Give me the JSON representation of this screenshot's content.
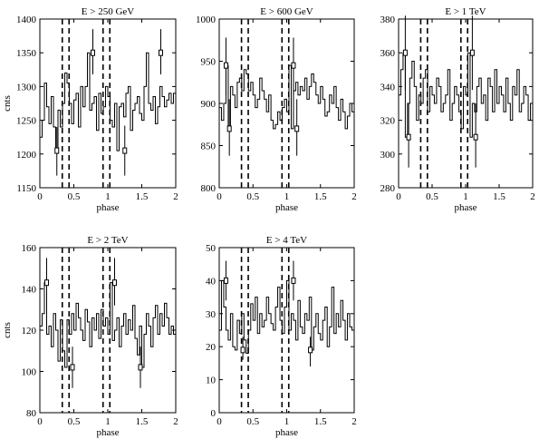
{
  "chart_data": [
    {
      "type": "line",
      "title": "E > 250 GeV",
      "xlabel": "phase",
      "ylabel": "cnts",
      "xlim": [
        0,
        2
      ],
      "ylim": [
        1150,
        1400
      ],
      "xticks": [
        "0",
        "0.5",
        "1",
        "1.5",
        "2"
      ],
      "yticks": [
        "1150",
        "1200",
        "1250",
        "1300",
        "1350",
        "1400"
      ],
      "vlines": [
        0.33,
        0.43,
        0.93,
        1.03
      ],
      "series": [
        {
          "style": "step",
          "values": [
            1225,
            1250,
            1305,
            1270,
            1245,
            1285,
            1240,
            1205,
            1265,
            1240,
            1275,
            1320,
            1305,
            1275,
            1245,
            1280,
            1290,
            1240,
            1300,
            1270,
            1300,
            1350,
            1265,
            1275,
            1285,
            1235,
            1290,
            1260,
            1270,
            1300,
            1285,
            1250,
            1240,
            1275,
            1205,
            1270,
            1275,
            1255,
            1290,
            1300,
            1235,
            1265,
            1275,
            1285,
            1260,
            1250,
            1300,
            1350,
            1275,
            1265,
            1285,
            1245,
            1270,
            1300,
            1285,
            1270,
            1280,
            1290,
            1275,
            1290
          ]
        }
      ],
      "errorbars": [
        {
          "x": 0.25,
          "y": 1205,
          "lo": 1168,
          "hi": 1240
        },
        {
          "x": 0.78,
          "y": 1350,
          "lo": 1318,
          "hi": 1385
        },
        {
          "x": 1.25,
          "y": 1205,
          "lo": 1168,
          "hi": 1242
        },
        {
          "x": 1.78,
          "y": 1350,
          "lo": 1318,
          "hi": 1385
        }
      ]
    },
    {
      "type": "line",
      "title": "E > 600 GeV",
      "xlabel": "phase",
      "ylabel": "",
      "xlim": [
        0,
        2
      ],
      "ylim": [
        800,
        1000
      ],
      "xticks": [
        "0",
        "0.5",
        "1",
        "1.5",
        "2"
      ],
      "yticks": [
        "800",
        "850",
        "900",
        "950",
        "1000"
      ],
      "vlines": [
        0.33,
        0.43,
        0.93,
        1.03
      ],
      "series": [
        {
          "style": "step",
          "values": [
            895,
            880,
            900,
            945,
            870,
            920,
            910,
            895,
            925,
            930,
            915,
            940,
            935,
            915,
            925,
            910,
            895,
            905,
            930,
            915,
            905,
            890,
            910,
            880,
            870,
            875,
            890,
            880,
            895,
            905,
            890,
            945,
            870,
            915,
            925,
            910,
            920,
            915,
            930,
            905,
            920,
            935,
            925,
            910,
            900,
            920,
            905,
            885,
            890,
            910,
            900,
            920,
            895,
            880,
            905,
            890,
            870,
            885,
            900,
            890
          ]
        }
      ],
      "errorbars": [
        {
          "x": 0.1,
          "y": 945,
          "lo": 910,
          "hi": 978
        },
        {
          "x": 0.15,
          "y": 870,
          "lo": 838,
          "hi": 905
        },
        {
          "x": 1.1,
          "y": 945,
          "lo": 910,
          "hi": 978
        },
        {
          "x": 1.15,
          "y": 870,
          "lo": 838,
          "hi": 905
        }
      ]
    },
    {
      "type": "line",
      "title": "E > 1 TeV",
      "xlabel": "phase",
      "ylabel": "",
      "xlim": [
        0,
        2
      ],
      "ylim": [
        280,
        380
      ],
      "xticks": [
        "0",
        "0.5",
        "1",
        "1.5",
        "2"
      ],
      "yticks": [
        "280",
        "300",
        "320",
        "340",
        "360",
        "380"
      ],
      "vlines": [
        0.33,
        0.43,
        0.93,
        1.03
      ],
      "series": [
        {
          "style": "step",
          "values": [
            335,
            350,
            360,
            310,
            330,
            345,
            355,
            340,
            320,
            335,
            330,
            345,
            350,
            325,
            340,
            335,
            330,
            345,
            340,
            325,
            330,
            335,
            350,
            320,
            330,
            340,
            335,
            325,
            315,
            340,
            335,
            360,
            310,
            330,
            325,
            340,
            345,
            330,
            335,
            320,
            345,
            340,
            325,
            350,
            330,
            340,
            335,
            325,
            345,
            330,
            320,
            340,
            335,
            350,
            325,
            330,
            340,
            335,
            320,
            330
          ]
        }
      ],
      "errorbars": [
        {
          "x": 0.1,
          "y": 360,
          "lo": 338,
          "hi": 382
        },
        {
          "x": 0.15,
          "y": 310,
          "lo": 292,
          "hi": 330
        },
        {
          "x": 1.1,
          "y": 360,
          "lo": 338,
          "hi": 382
        },
        {
          "x": 1.15,
          "y": 310,
          "lo": 292,
          "hi": 330
        }
      ]
    },
    {
      "type": "line",
      "title": "E > 2 TeV",
      "xlabel": "phase",
      "ylabel": "cnts",
      "xlim": [
        0,
        2
      ],
      "ylim": [
        80,
        160
      ],
      "xticks": [
        "0",
        "0.5",
        "1",
        "1.5",
        "2"
      ],
      "yticks": [
        "80",
        "100",
        "120",
        "140",
        "160"
      ],
      "vlines": [
        0.33,
        0.43,
        0.93,
        1.03
      ],
      "series": [
        {
          "style": "step",
          "values": [
            122,
            128,
            143,
            118,
            122,
            112,
            128,
            120,
            105,
            125,
            110,
            102,
            125,
            118,
            128,
            120,
            133,
            126,
            120,
            115,
            130,
            124,
            112,
            126,
            120,
            128,
            116,
            130,
            122,
            126,
            118,
            143,
            115,
            120,
            126,
            112,
            122,
            128,
            118,
            125,
            120,
            132,
            116,
            108,
            122,
            102,
            118,
            128,
            122,
            112,
            126,
            132,
            118,
            128,
            122,
            133,
            126,
            118,
            122,
            118
          ]
        }
      ],
      "errorbars": [
        {
          "x": 0.1,
          "y": 143,
          "lo": 132,
          "hi": 155
        },
        {
          "x": 0.48,
          "y": 102,
          "lo": 92,
          "hi": 112
        },
        {
          "x": 1.1,
          "y": 143,
          "lo": 132,
          "hi": 155
        },
        {
          "x": 1.48,
          "y": 102,
          "lo": 92,
          "hi": 112
        }
      ]
    },
    {
      "type": "line",
      "title": "E > 4 TeV",
      "xlabel": "phase",
      "ylabel": "",
      "xlim": [
        0,
        2
      ],
      "ylim": [
        0,
        50
      ],
      "xticks": [
        "0",
        "0.5",
        "1",
        "1.5",
        "2"
      ],
      "yticks": [
        "0",
        "10",
        "20",
        "30",
        "40",
        "50"
      ],
      "vlines": [
        0.33,
        0.43,
        0.93,
        1.03
      ],
      "series": [
        {
          "style": "step",
          "values": [
            25,
            40,
            32,
            25,
            22,
            30,
            20,
            19,
            28,
            24,
            30,
            22,
            18,
            25,
            33,
            28,
            35,
            24,
            30,
            26,
            28,
            35,
            30,
            27,
            25,
            32,
            38,
            28,
            24,
            32,
            40,
            25,
            30,
            28,
            22,
            34,
            26,
            24,
            30,
            28,
            35,
            19,
            26,
            30,
            24,
            22,
            28,
            32,
            20,
            26,
            38,
            24,
            30,
            26,
            34,
            28,
            22,
            30,
            26,
            25
          ]
        }
      ],
      "errorbars": [
        {
          "x": 0.1,
          "y": 40,
          "lo": 34,
          "hi": 46
        },
        {
          "x": 0.35,
          "y": 19,
          "lo": 16,
          "hi": 23
        },
        {
          "x": 1.1,
          "y": 40,
          "lo": 34,
          "hi": 46
        },
        {
          "x": 1.35,
          "y": 19,
          "lo": 14,
          "hi": 23
        }
      ]
    }
  ]
}
